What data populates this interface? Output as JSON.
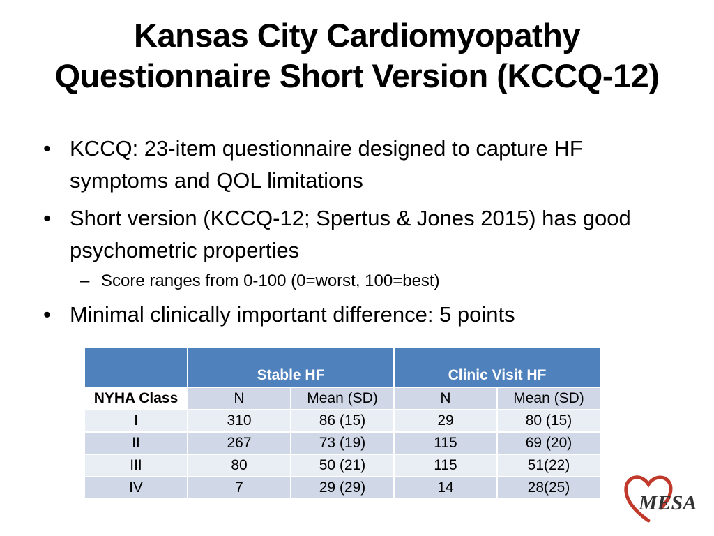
{
  "slide": {
    "title_line1": "Kansas City Cardiomyopathy",
    "title_line2": "Questionnaire Short Version (KCCQ-12)",
    "bullets": {
      "b1": "KCCQ: 23-item questionnaire designed to capture HF symptoms and QOL limitations",
      "b2": "Short version (KCCQ-12; Spertus & Jones 2015) has good psychometric properties",
      "b2_sub": "Score ranges from 0-100 (0=worst, 100=best)",
      "b3": "Minimal clinically important difference: 5 points"
    }
  },
  "table": {
    "group_headers": [
      "Stable HF",
      "Clinic Visit HF"
    ],
    "sub_headers": [
      "NYHA Class",
      "N",
      "Mean (SD)",
      "N",
      "Mean (SD)"
    ],
    "rows": [
      [
        "I",
        "310",
        "86 (15)",
        "29",
        "80 (15)"
      ],
      [
        "II",
        "267",
        "73 (19)",
        "115",
        "69 (20)"
      ],
      [
        "III",
        "80",
        "50 (21)",
        "115",
        "51(22)"
      ],
      [
        "IV",
        "7",
        "29 (29)",
        "14",
        "28(25)"
      ]
    ]
  },
  "logo": {
    "text": "MESA",
    "heart_color": "#c0392b",
    "text_color": "#333333"
  },
  "colors": {
    "header_blue": "#4f81bd",
    "row_light": "#e9edf4",
    "row_dark": "#d0d8e8"
  }
}
